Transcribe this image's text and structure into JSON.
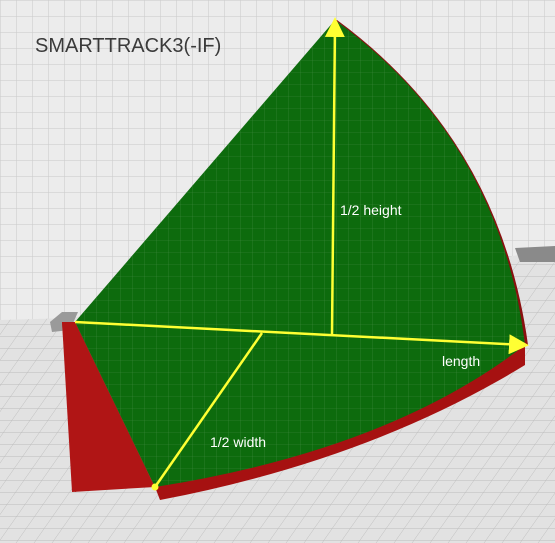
{
  "title": "SMARTTRACK3(-IF)",
  "labels": {
    "half_height": "1/2 height",
    "length": "length",
    "half_width": "1/2 width"
  }
}
